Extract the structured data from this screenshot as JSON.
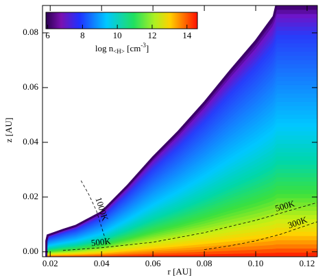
{
  "chart_data": {
    "type": "contour",
    "xlabel": "r [AU]",
    "ylabel": "z [AU]",
    "xlim": [
      0.017,
      0.124
    ],
    "ylim": [
      -0.0018,
      0.09
    ],
    "xticks": [
      0.02,
      0.04,
      0.06,
      0.08,
      {
        "value": 0.1,
        "label": "0.10"
      },
      0.12
    ],
    "yticks": [
      {
        "value": 0,
        "label": "0.00"
      },
      0.02,
      0.04,
      0.06,
      0.08
    ],
    "surface": {
      "x": [
        0.0185,
        0.0185,
        0.019,
        0.022,
        0.025,
        0.03,
        0.04,
        0.05,
        0.06,
        0.07,
        0.08,
        0.09,
        0.1,
        0.107,
        0.108
      ],
      "y": [
        -0.0018,
        0.004,
        0.006,
        0.007,
        0.008,
        0.0095,
        0.0145,
        0.024,
        0.0345,
        0.044,
        0.0545,
        0.066,
        0.077,
        0.086,
        0.09
      ]
    },
    "contours": [
      {
        "label": "1000K",
        "x": [
          0.032,
          0.035,
          0.038,
          0.04,
          0.042
        ],
        "y": [
          0.026,
          0.021,
          0.015,
          0.009,
          0.003
        ]
      },
      {
        "label": "500K",
        "x": [
          0.025,
          0.04,
          0.06,
          0.08,
          0.1,
          0.124
        ],
        "y": [
          0.0005,
          0.0015,
          0.0035,
          0.007,
          0.0115,
          0.018
        ]
      },
      {
        "label": "300K",
        "x": [
          0.08,
          0.09,
          0.1,
          0.11,
          0.124
        ],
        "y": [
          0.0008,
          0.0022,
          0.004,
          0.0065,
          0.011
        ]
      }
    ],
    "colorbar": {
      "label": "log n",
      "label_sub": "<H>",
      "label_unit": " [cm",
      "label_sup": "-3",
      "label_end": "]",
      "lim": [
        5.9,
        14.6
      ],
      "ticks": [
        6,
        8,
        10,
        12,
        14
      ]
    }
  }
}
